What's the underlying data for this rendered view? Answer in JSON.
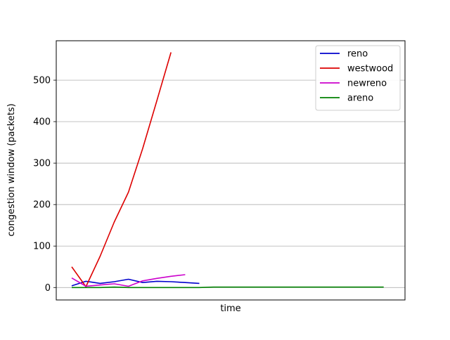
{
  "chart_data": {
    "type": "line",
    "title": "",
    "xlabel": "time",
    "ylabel": "congestion window (packets)",
    "ylim": [
      -30,
      595
    ],
    "xlim": [
      0,
      23.5
    ],
    "yticks": [
      0,
      100,
      200,
      300,
      400,
      500
    ],
    "x_ticks_shown": false,
    "grid": "y-axis horizontal",
    "legend_position": "top-right",
    "series": [
      {
        "name": "reno",
        "color": "#0000cc",
        "x": [
          0,
          1,
          2,
          3,
          4,
          5,
          6,
          7,
          8,
          9
        ],
        "y": [
          4,
          15,
          10,
          14,
          20,
          12,
          15,
          14,
          12,
          10
        ]
      },
      {
        "name": "westwood",
        "color": "#dd0000",
        "x": [
          0,
          1,
          2,
          3,
          4,
          5,
          6,
          7
        ],
        "y": [
          50,
          2,
          75,
          158,
          230,
          335,
          450,
          567
        ]
      },
      {
        "name": "newreno",
        "color": "#cc00cc",
        "x": [
          0,
          1,
          2,
          3,
          4,
          5,
          6,
          7,
          8
        ],
        "y": [
          23,
          3,
          6,
          9,
          3,
          16,
          22,
          27,
          31
        ]
      },
      {
        "name": "areno",
        "color": "#008000",
        "x": [
          0,
          1,
          2,
          3,
          4,
          5,
          6,
          7,
          8,
          9,
          10,
          11,
          12,
          13,
          14,
          15,
          16,
          17,
          18,
          19,
          20,
          21,
          22
        ],
        "y": [
          0,
          0,
          0,
          1,
          0,
          0,
          0,
          0,
          0,
          0,
          1,
          1,
          1,
          1,
          1,
          1,
          1,
          1,
          1,
          1,
          1,
          1,
          1
        ]
      }
    ]
  }
}
